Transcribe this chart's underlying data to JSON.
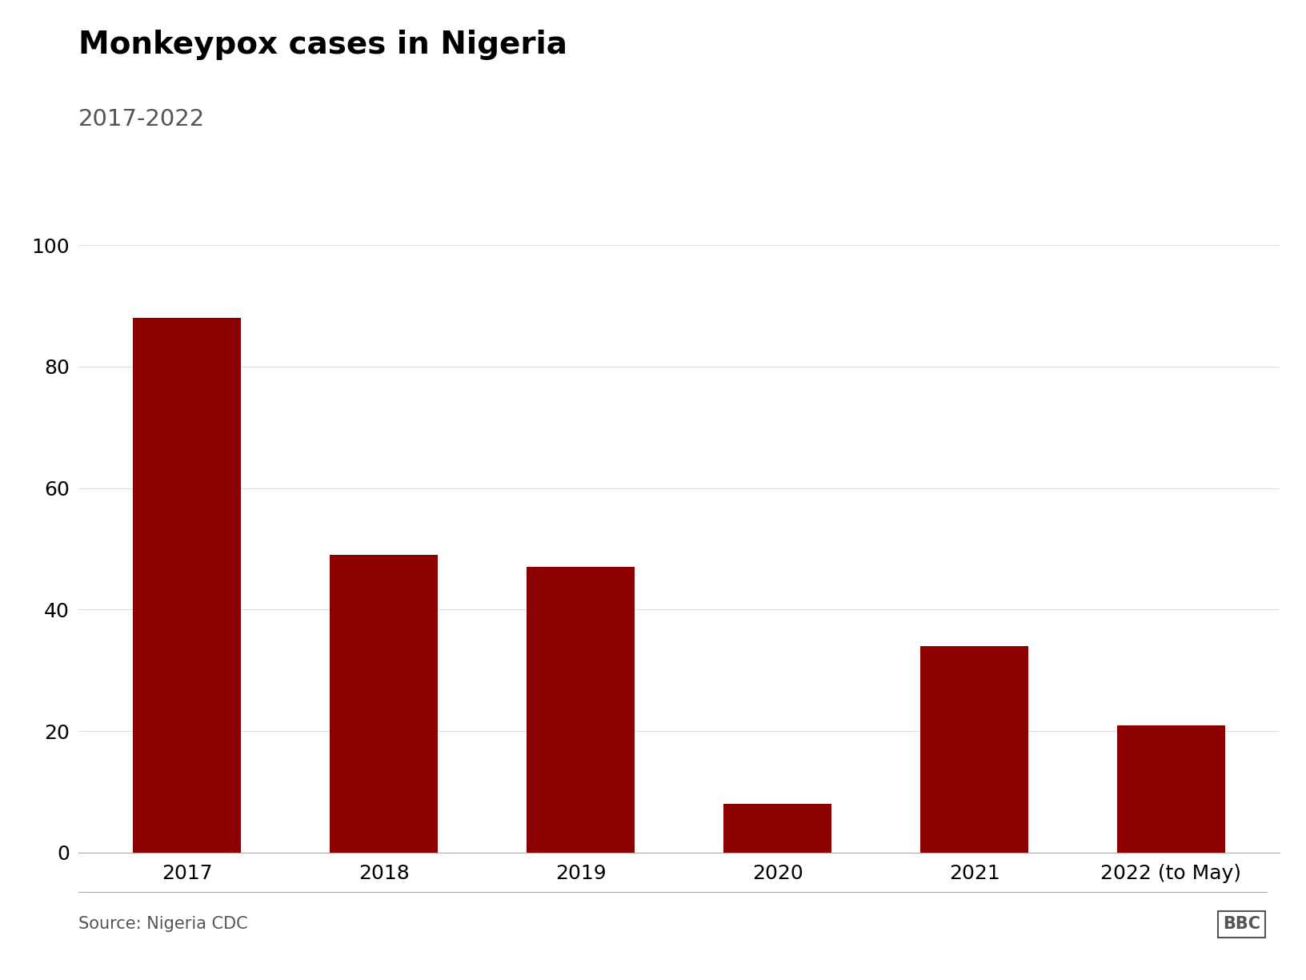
{
  "title": "Monkeypox cases in Nigeria",
  "subtitle": "2017-2022",
  "categories": [
    "2017",
    "2018",
    "2019",
    "2020",
    "2021",
    "2022 (to May)"
  ],
  "values": [
    88,
    49,
    47,
    8,
    34,
    21
  ],
  "bar_color": "#8B0000",
  "background_color": "#ffffff",
  "ylim": [
    0,
    100
  ],
  "yticks": [
    0,
    20,
    40,
    60,
    80,
    100
  ],
  "source_text": "Source: Nigeria CDC",
  "bbc_text": "BBC",
  "title_fontsize": 28,
  "subtitle_fontsize": 21,
  "tick_fontsize": 18,
  "source_fontsize": 15,
  "bar_width": 0.55,
  "grid_color": "#dddddd",
  "spine_color": "#aaaaaa",
  "text_color_dark": "#000000",
  "text_color_gray": "#555555"
}
